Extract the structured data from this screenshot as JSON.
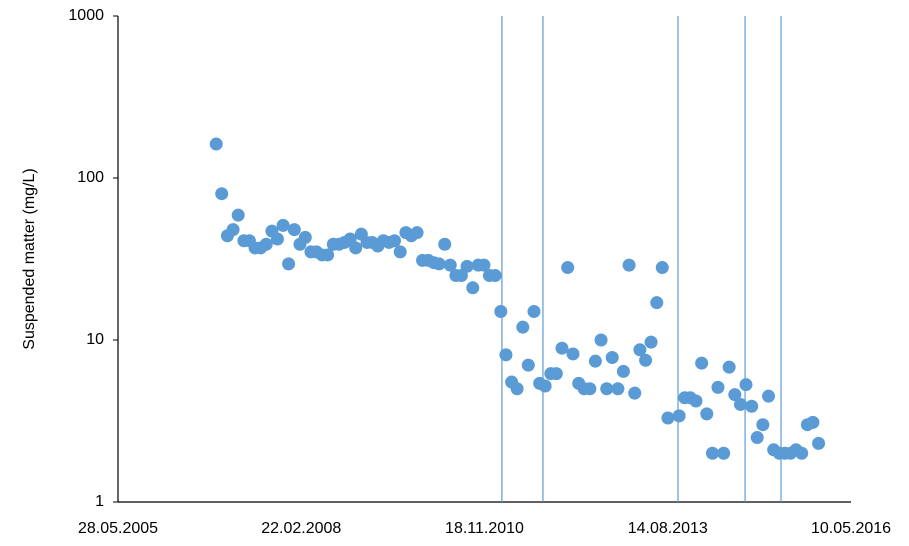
{
  "chart_data": {
    "type": "scatter",
    "y_label": "Suspended matter (mg/L)",
    "log_y": true,
    "color": "#5b9bd5",
    "line_color": "#5b9bd5",
    "xlim": [
      "28.05.2005",
      "10.05.2016"
    ],
    "xticks": [
      "28.05.2005",
      "22.02.2008",
      "18.11.2010",
      "14.08.2013",
      "10.05.2016"
    ],
    "ylim": [
      1,
      1000
    ],
    "yticks": [
      1,
      10,
      100,
      1000
    ],
    "vlines": [
      "21.02.2011",
      "03.10.2011",
      "09.10.2013",
      "10.10.2014",
      "24.04.2015"
    ],
    "x": [
      "15.11.2006",
      "15.12.2006",
      "15.01.2007",
      "15.02.2007",
      "15.03.2007",
      "15.04.2007",
      "15.05.2007",
      "15.06.2007",
      "15.07.2007",
      "15.08.2007",
      "15.09.2007",
      "15.10.2007",
      "15.11.2007",
      "15.12.2007",
      "15.01.2008",
      "15.02.2008",
      "15.03.2008",
      "15.04.2008",
      "15.05.2008",
      "15.06.2008",
      "15.07.2008",
      "15.08.2008",
      "15.09.2008",
      "15.10.2008",
      "15.11.2008",
      "15.12.2008",
      "15.01.2009",
      "15.02.2009",
      "15.03.2009",
      "15.04.2009",
      "15.05.2009",
      "15.06.2009",
      "15.07.2009",
      "15.08.2009",
      "15.09.2009",
      "15.10.2009",
      "15.11.2009",
      "15.12.2009",
      "15.01.2010",
      "15.02.2010",
      "15.03.2010",
      "15.04.2010",
      "15.05.2010",
      "15.06.2010",
      "15.07.2010",
      "15.08.2010",
      "15.09.2010",
      "15.10.2010",
      "15.11.2010",
      "15.12.2010",
      "15.01.2011",
      "15.02.2011",
      "15.03.2011",
      "15.04.2011",
      "15.05.2011",
      "15.06.2011",
      "15.07.2011",
      "15.08.2011",
      "15.09.2011",
      "15.10.2011",
      "15.11.2011",
      "15.12.2011",
      "15.01.2012",
      "15.02.2012",
      "15.03.2012",
      "15.04.2012",
      "15.05.2012",
      "15.06.2012",
      "15.07.2012",
      "15.08.2012",
      "15.09.2012",
      "15.10.2012",
      "15.11.2012",
      "15.12.2012",
      "15.01.2013",
      "15.02.2013",
      "15.03.2013",
      "15.04.2013",
      "15.05.2013",
      "15.06.2013",
      "15.07.2013",
      "15.08.2013",
      "15.10.2013",
      "15.11.2013",
      "15.12.2013",
      "15.01.2014",
      "15.02.2014",
      "15.03.2014",
      "15.04.2014",
      "15.05.2014",
      "15.06.2014",
      "15.07.2014",
      "15.08.2014",
      "15.09.2014",
      "15.10.2014",
      "15.11.2014",
      "15.12.2014",
      "15.01.2015",
      "15.02.2015",
      "15.03.2015",
      "15.04.2015",
      "15.05.2015",
      "15.06.2015",
      "15.07.2015",
      "15.08.2015",
      "15.09.2015",
      "15.10.2015",
      "15.11.2015"
    ],
    "values": [
      162,
      80,
      44,
      48,
      59,
      41,
      41,
      37,
      37,
      39,
      47,
      42,
      51,
      29.5,
      48,
      39,
      43,
      35,
      35,
      33.5,
      33.5,
      39,
      39,
      40,
      42,
      37,
      45,
      40,
      40,
      38,
      41,
      40,
      41,
      35,
      46,
      44,
      46,
      31,
      31,
      30,
      29.5,
      39,
      29,
      25,
      25,
      28.5,
      21,
      29,
      29,
      25,
      25,
      15,
      8.1,
      5.5,
      5,
      12,
      7,
      15,
      5.4,
      5.2,
      6.2,
      6.2,
      8.9,
      28,
      8.2,
      5.4,
      5,
      5,
      7.4,
      10,
      5,
      7.8,
      5,
      6.4,
      29,
      4.7,
      8.7,
      7.5,
      9.7,
      17,
      28,
      3.3,
      3.4,
      4.4,
      4.4,
      4.2,
      7.2,
      3.5,
      2,
      5.1,
      2,
      6.8,
      4.6,
      4,
      5.3,
      3.9,
      2.5,
      3,
      4.5,
      2.1,
      2,
      2,
      2,
      2.1,
      2,
      3,
      3.1,
      2.3
    ]
  }
}
